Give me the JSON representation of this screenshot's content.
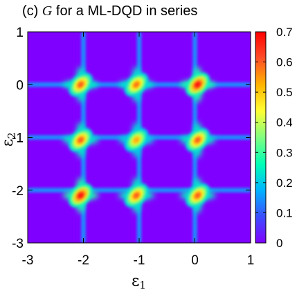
{
  "chart_data": {
    "type": "heatmap",
    "title": {
      "prefix": "(c) ",
      "variable": "G",
      "suffix": " for a ML-DQD in series"
    },
    "xlabel": {
      "symbol": "ε",
      "subscript": "1"
    },
    "ylabel": {
      "symbol": "ε",
      "subscript": "2"
    },
    "xlim": [
      -3,
      1
    ],
    "ylim": [
      -3,
      1
    ],
    "xticks": [
      -3,
      -2,
      -1,
      0,
      1
    ],
    "yticks": [
      -3,
      -2,
      -1,
      0,
      1
    ],
    "xtick_labels": [
      "-3",
      "-2",
      "-1",
      "0",
      "1"
    ],
    "ytick_labels": [
      "-3",
      "-2",
      "-1",
      "0",
      "1"
    ],
    "colorbar": {
      "range": [
        0,
        0.7
      ],
      "ticks": [
        0,
        0.1,
        0.2,
        0.3,
        0.4,
        0.5,
        0.6,
        0.7
      ],
      "tick_labels": [
        "0",
        "0.1",
        "0.2",
        "0.3",
        "0.4",
        "0.5",
        "0.6",
        "0.7"
      ],
      "colormap": [
        "#8000ff",
        "#3b4eff",
        "#00b4ff",
        "#00ffb4",
        "#80ff80",
        "#ffff33",
        "#ffb400",
        "#ff4e27",
        "#ff0000"
      ]
    },
    "background_value": 0.0,
    "peaks": [
      {
        "e1": -2.05,
        "e2": 0.0,
        "value": 0.62
      },
      {
        "e1": -1.05,
        "e2": 0.0,
        "value": 0.6
      },
      {
        "e1": 0.05,
        "e2": 0.0,
        "value": 0.7
      },
      {
        "e1": -2.05,
        "e2": -1.05,
        "value": 0.62
      },
      {
        "e1": -1.05,
        "e2": -1.05,
        "value": 0.55
      },
      {
        "e1": 0.05,
        "e2": -1.05,
        "value": 0.62
      },
      {
        "e1": -2.05,
        "e2": -2.1,
        "value": 0.7
      },
      {
        "e1": -1.05,
        "e2": -2.1,
        "value": 0.62
      },
      {
        "e1": 0.05,
        "e2": -2.1,
        "value": 0.62
      }
    ],
    "resonance_lines": {
      "e1_values": [
        -2.0,
        -1.0,
        0.0
      ],
      "e2_values": [
        0.0,
        -1.0,
        -2.0
      ],
      "value": 0.18
    },
    "grid": false,
    "legend": "none"
  }
}
